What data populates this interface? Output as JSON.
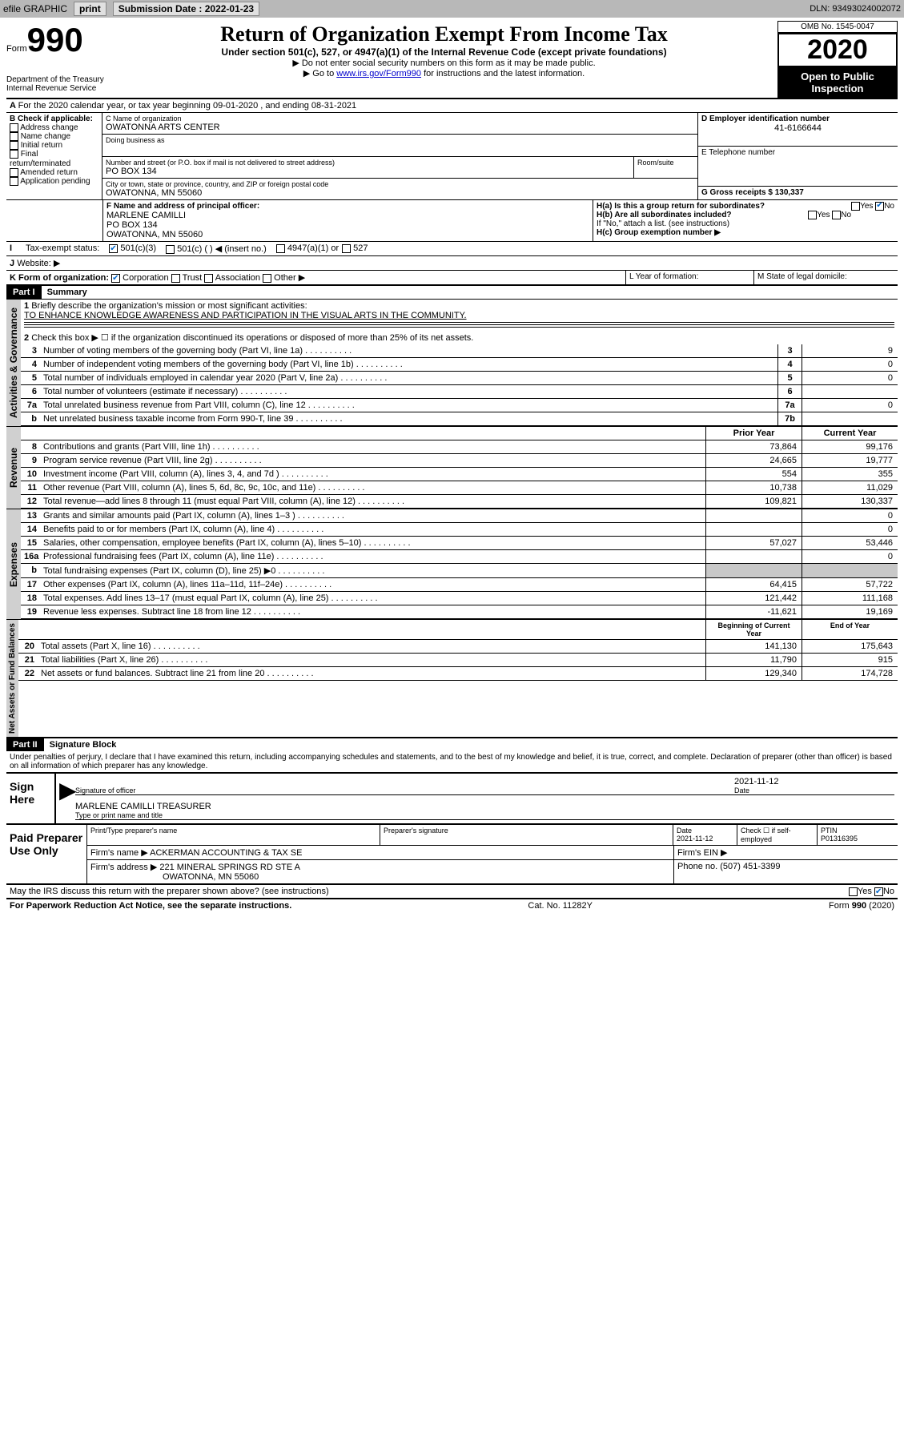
{
  "topbar": {
    "efile": "efile GRAPHIC",
    "print": "print",
    "subdate_label": "Submission Date : 2022-01-23",
    "dln": "DLN: 93493024002072"
  },
  "header": {
    "form_word": "Form",
    "form_num": "990",
    "title": "Return of Organization Exempt From Income Tax",
    "subtitle": "Under section 501(c), 527, or 4947(a)(1) of the Internal Revenue Code (except private foundations)",
    "note1": "▶ Do not enter social security numbers on this form as it may be made public.",
    "note2a": "▶ Go to ",
    "note2_link": "www.irs.gov/Form990",
    "note2b": " for instructions and the latest information.",
    "dept": "Department of the Treasury\nInternal Revenue Service",
    "omb": "OMB No. 1545-0047",
    "year": "2020",
    "inspect": "Open to Public Inspection"
  },
  "lineA": "For the 2020 calendar year, or tax year beginning 09-01-2020   , and ending 08-31-2021",
  "boxB": {
    "label": "B Check if applicable:",
    "opts": [
      "Address change",
      "Name change",
      "Initial return",
      "Final return/terminated",
      "Amended return",
      "Application pending"
    ]
  },
  "boxC": {
    "name_label": "C Name of organization",
    "name": "OWATONNA ARTS CENTER",
    "dba_label": "Doing business as",
    "addr_label": "Number and street (or P.O. box if mail is not delivered to street address)",
    "room_label": "Room/suite",
    "addr": "PO BOX 134",
    "city_label": "City or town, state or province, country, and ZIP or foreign postal code",
    "city": "OWATONNA, MN  55060"
  },
  "boxD": {
    "label": "D Employer identification number",
    "val": "41-6166644"
  },
  "boxE": {
    "label": "E Telephone number"
  },
  "boxG": {
    "label": "G Gross receipts $ 130,337"
  },
  "boxF": {
    "label": "F  Name and address of principal officer:",
    "name": "MARLENE CAMILLI",
    "addr1": "PO BOX 134",
    "addr2": "OWATONNA, MN  55060"
  },
  "boxH": {
    "a": "H(a)  Is this a group return for subordinates?",
    "b": "H(b)  Are all subordinates included?",
    "note": "If \"No,\" attach a list. (see instructions)",
    "c": "H(c)  Group exemption number ▶"
  },
  "boxI": {
    "label": "Tax-exempt status:",
    "o1": "501(c)(3)",
    "o2": "501(c) (  ) ◀ (insert no.)",
    "o3": "4947(a)(1) or",
    "o4": "527"
  },
  "boxJ": "Website: ▶",
  "boxK": {
    "label": "K Form of organization:",
    "o1": "Corporation",
    "o2": "Trust",
    "o3": "Association",
    "o4": "Other ▶"
  },
  "boxL": "L Year of formation:",
  "boxM": "M State of legal domicile:",
  "part1": {
    "header": "Part I",
    "title": "Summary",
    "l1_label": "Briefly describe the organization's mission or most significant activities:",
    "l1_text": "TO ENHANCE KNOWLEDGE AWARENESS AND PARTICIPATION IN THE VISUAL ARTS IN THE COMMUNITY.",
    "l2": "Check this box ▶ ☐  if the organization discontinued its operations or disposed of more than 25% of its net assets.",
    "lines_gov": [
      {
        "n": "3",
        "t": "Number of voting members of the governing body (Part VI, line 1a)",
        "box": "3",
        "v": "9"
      },
      {
        "n": "4",
        "t": "Number of independent voting members of the governing body (Part VI, line 1b)",
        "box": "4",
        "v": "0"
      },
      {
        "n": "5",
        "t": "Total number of individuals employed in calendar year 2020 (Part V, line 2a)",
        "box": "5",
        "v": "0"
      },
      {
        "n": "6",
        "t": "Total number of volunteers (estimate if necessary)",
        "box": "6",
        "v": ""
      },
      {
        "n": "7a",
        "t": "Total unrelated business revenue from Part VIII, column (C), line 12",
        "box": "7a",
        "v": "0"
      },
      {
        "n": "b",
        "t": "Net unrelated business taxable income from Form 990-T, line 39",
        "box": "7b",
        "v": ""
      }
    ],
    "col_prior": "Prior Year",
    "col_current": "Current Year",
    "revenue": [
      {
        "n": "8",
        "t": "Contributions and grants (Part VIII, line 1h)",
        "p": "73,864",
        "c": "99,176"
      },
      {
        "n": "9",
        "t": "Program service revenue (Part VIII, line 2g)",
        "p": "24,665",
        "c": "19,777"
      },
      {
        "n": "10",
        "t": "Investment income (Part VIII, column (A), lines 3, 4, and 7d )",
        "p": "554",
        "c": "355"
      },
      {
        "n": "11",
        "t": "Other revenue (Part VIII, column (A), lines 5, 6d, 8c, 9c, 10c, and 11e)",
        "p": "10,738",
        "c": "11,029"
      },
      {
        "n": "12",
        "t": "Total revenue—add lines 8 through 11 (must equal Part VIII, column (A), line 12)",
        "p": "109,821",
        "c": "130,337"
      }
    ],
    "expenses": [
      {
        "n": "13",
        "t": "Grants and similar amounts paid (Part IX, column (A), lines 1–3 )",
        "p": "",
        "c": "0"
      },
      {
        "n": "14",
        "t": "Benefits paid to or for members (Part IX, column (A), line 4)",
        "p": "",
        "c": "0"
      },
      {
        "n": "15",
        "t": "Salaries, other compensation, employee benefits (Part IX, column (A), lines 5–10)",
        "p": "57,027",
        "c": "53,446"
      },
      {
        "n": "16a",
        "t": "Professional fundraising fees (Part IX, column (A), line 11e)",
        "p": "",
        "c": "0"
      },
      {
        "n": "b",
        "t": "Total fundraising expenses (Part IX, column (D), line 25) ▶0",
        "p": "shade",
        "c": "shade"
      },
      {
        "n": "17",
        "t": "Other expenses (Part IX, column (A), lines 11a–11d, 11f–24e)",
        "p": "64,415",
        "c": "57,722"
      },
      {
        "n": "18",
        "t": "Total expenses. Add lines 13–17 (must equal Part IX, column (A), line 25)",
        "p": "121,442",
        "c": "111,168"
      },
      {
        "n": "19",
        "t": "Revenue less expenses. Subtract line 18 from line 12",
        "p": "-11,621",
        "c": "19,169"
      }
    ],
    "col_begin": "Beginning of Current Year",
    "col_end": "End of Year",
    "net": [
      {
        "n": "20",
        "t": "Total assets (Part X, line 16)",
        "p": "141,130",
        "c": "175,643"
      },
      {
        "n": "21",
        "t": "Total liabilities (Part X, line 26)",
        "p": "11,790",
        "c": "915"
      },
      {
        "n": "22",
        "t": "Net assets or fund balances. Subtract line 21 from line 20",
        "p": "129,340",
        "c": "174,728"
      }
    ],
    "vlabels": {
      "gov": "Activities & Governance",
      "rev": "Revenue",
      "exp": "Expenses",
      "net": "Net Assets or Fund Balances"
    }
  },
  "part2": {
    "header": "Part II",
    "title": "Signature Block",
    "penalty": "Under penalties of perjury, I declare that I have examined this return, including accompanying schedules and statements, and to the best of my knowledge and belief, it is true, correct, and complete. Declaration of preparer (other than officer) is based on all information of which preparer has any knowledge.",
    "sign_here": "Sign Here",
    "sig_officer": "Signature of officer",
    "sig_date": "2021-11-12",
    "date_label": "Date",
    "officer_name": "MARLENE CAMILLI TREASURER",
    "type_label": "Type or print name and title",
    "paid": "Paid Preparer Use Only",
    "prep_name_label": "Print/Type preparer's name",
    "prep_sig_label": "Preparer's signature",
    "prep_date": "Date\n2021-11-12",
    "check_se": "Check ☐ if self-employed",
    "ptin_label": "PTIN",
    "ptin": "P01316395",
    "firm_name_label": "Firm's name    ▶",
    "firm_name": "ACKERMAN ACCOUNTING & TAX SE",
    "firm_ein": "Firm's EIN ▶",
    "firm_addr_label": "Firm's address ▶",
    "firm_addr1": "221 MINERAL SPRINGS RD STE A",
    "firm_addr2": "OWATONNA, MN  55060",
    "phone_label": "Phone no.",
    "phone": "(507) 451-3399",
    "discuss": "May the IRS discuss this return with the preparer shown above? (see instructions)"
  },
  "footer": {
    "pra": "For Paperwork Reduction Act Notice, see the separate instructions.",
    "cat": "Cat. No. 11282Y",
    "form": "Form 990 (2020)"
  },
  "yn": {
    "yes": "Yes",
    "no": "No"
  }
}
